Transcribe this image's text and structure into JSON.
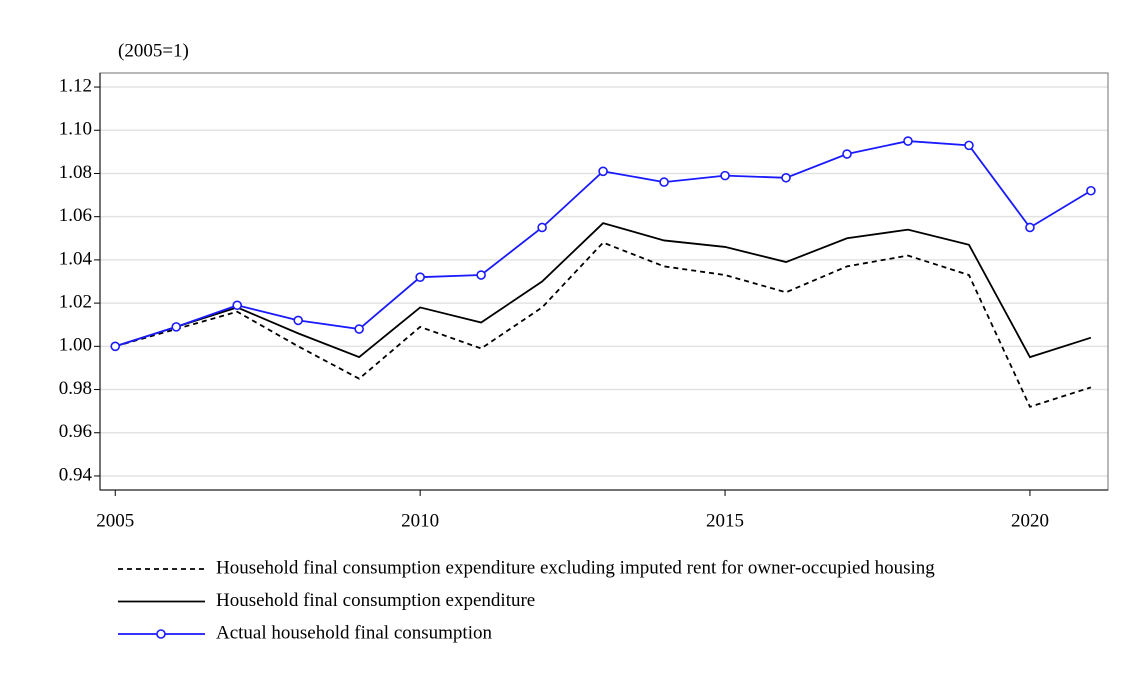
{
  "chart_data": {
    "type": "line",
    "y_label": "(2005=1)",
    "x": [
      2005,
      2006,
      2007,
      2008,
      2009,
      2010,
      2011,
      2012,
      2013,
      2014,
      2015,
      2016,
      2017,
      2018,
      2019,
      2020,
      2021
    ],
    "xlim": [
      2004.75,
      2021.28
    ],
    "xticks": [
      2005,
      2010,
      2015,
      2020
    ],
    "ylim": [
      0.9335,
      1.1265
    ],
    "yticks": [
      {
        "value": 0.94,
        "label": "0.94"
      },
      {
        "value": 0.96,
        "label": "0.96"
      },
      {
        "value": 0.98,
        "label": "0.98"
      },
      {
        "value": 1.0,
        "label": "1.00"
      },
      {
        "value": 1.02,
        "label": "1.02"
      },
      {
        "value": 1.04,
        "label": "1.04"
      },
      {
        "value": 1.06,
        "label": "1.06"
      },
      {
        "value": 1.08,
        "label": "1.08"
      },
      {
        "value": 1.1,
        "label": "1.10"
      },
      {
        "value": 1.12,
        "label": "1.12"
      }
    ],
    "grid": true,
    "series": [
      {
        "name": "Household final consumption expenditure excluding imputed rent for owner-occupied housing",
        "color": "#000000",
        "dash": true,
        "marker": false,
        "values": [
          1.0,
          1.008,
          1.016,
          1.0,
          0.985,
          1.009,
          0.999,
          1.018,
          1.048,
          1.037,
          1.033,
          1.025,
          1.037,
          1.042,
          1.033,
          0.972,
          0.981
        ]
      },
      {
        "name": "Household final consumption expenditure",
        "color": "#000000",
        "dash": false,
        "marker": false,
        "values": [
          1.0,
          1.009,
          1.018,
          1.006,
          0.995,
          1.018,
          1.011,
          1.03,
          1.057,
          1.049,
          1.046,
          1.039,
          1.05,
          1.054,
          1.047,
          0.995,
          1.004
        ]
      },
      {
        "name": "Actual household final consumption",
        "color": "#1a1aff",
        "dash": false,
        "marker": true,
        "values": [
          1.0,
          1.009,
          1.019,
          1.012,
          1.008,
          1.032,
          1.033,
          1.055,
          1.081,
          1.076,
          1.079,
          1.078,
          1.089,
          1.095,
          1.093,
          1.055,
          1.072
        ]
      }
    ]
  }
}
